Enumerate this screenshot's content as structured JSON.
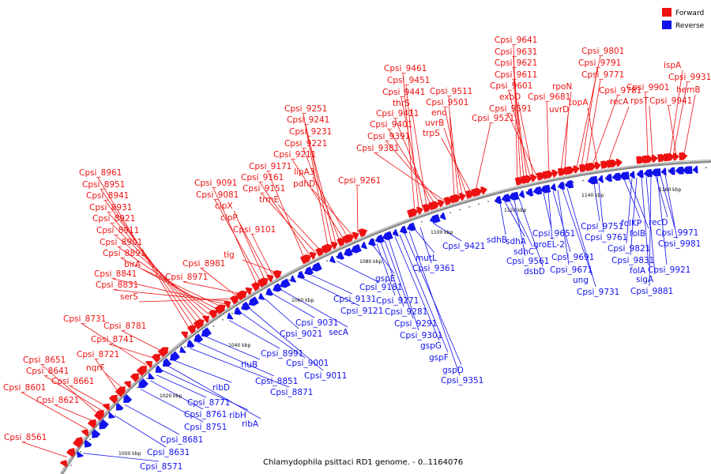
{
  "title": "Chlamydophila psittaci RD1 genome. - 0..1164076",
  "colors": {
    "forward": "#ee1111",
    "reverse": "#1111ee",
    "backbone": "#7a7a7a"
  },
  "legend": {
    "forward": "Forward",
    "reverse": "Reverse"
  },
  "ticks": [
    "1000 kbp",
    "1020 kbp",
    "1040 kbp",
    "1060 kbp",
    "1080 kbp",
    "1100 kbp",
    "1120 kbp",
    "1140 kbp",
    "1160 kbp"
  ],
  "forward_labels": [
    "Cpsi_8561",
    "Cpsi_8601",
    "Cpsi_8621",
    "Cpsi_8651",
    "Cpsi_8641",
    "Cpsi_8661",
    "Cpsi_8721",
    "nqrF",
    "Cpsi_8731",
    "Cpsi_8741",
    "Cpsi_8781",
    "Cpsi_8961",
    "Cpsi_8951",
    "Cpsi_8941",
    "Cpsi_8931",
    "Cpsi_8921",
    "Cpsi_8911",
    "Cpsi_8901",
    "Cpsi_8891",
    "birA",
    "Cpsi_8841",
    "Cpsi_8831",
    "serS",
    "Cpsi_8981",
    "Cpsi_8971",
    "Cpsi_9091",
    "Cpsi_9081",
    "clpX",
    "clpP",
    "Cpsi_9101",
    "tig",
    "Cpsi_9171",
    "Cpsi_9161",
    "Cpsi_9151",
    "trmE",
    "Cpsi_9251",
    "Cpsi_9241",
    "Cpsi_9231",
    "Cpsi_9221",
    "Cpsi_9211",
    "lipA3",
    "pdhD",
    "Cpsi_9261",
    "Cpsi_9461",
    "Cpsi_9451",
    "Cpsi_9441",
    "thrS",
    "Cpsi_9411",
    "Cpsi_9401",
    "Cpsi_9391",
    "Cpsi_9381",
    "Cpsi_9511",
    "eno",
    "Cpsi_9501",
    "uvrB",
    "trpS",
    "Cpsi_9521",
    "Cpsi_9641",
    "Cpsi_9631",
    "Cpsi_9621",
    "Cpsi_9611",
    "Cpsi_9601",
    "exbD",
    "Cpsi_9591",
    "Cpsi_9681",
    "rpoN",
    "uvrD",
    "Cpsi_9801",
    "Cpsi_9791",
    "Cpsi_9771",
    "Cpsi_9781",
    "topA",
    "recA",
    "ispA",
    "Cpsi_9931",
    "Cpsi_9901",
    "rpsT",
    "Cpsi_9941",
    "hemB"
  ],
  "reverse_labels": [
    "Cpsi_8571",
    "Cpsi_8631",
    "Cpsi_8681",
    "Cpsi_8751",
    "Cpsi_8761",
    "Cpsi_8771",
    "ribH",
    "ribA",
    "ribD",
    "Cpsi_8871",
    "Cpsi_8851",
    "rluB",
    "Cpsi_8991",
    "Cpsi_9001",
    "Cpsi_9011",
    "Cpsi_9021",
    "Cpsi_9031",
    "secA",
    "Cpsi_9121",
    "Cpsi_9131",
    "Cpsi_9181",
    "gspE",
    "Cpsi_9271",
    "Cpsi_9281",
    "Cpsi_9291",
    "Cpsi_9301",
    "gspG",
    "gspF",
    "gspD",
    "Cpsi_9351",
    "mutL",
    "Cpsi_9361",
    "Cpsi_9421",
    "sdhB",
    "sdhA",
    "sdhC",
    "Cpsi_9561",
    "dsbD",
    "Cpsi_9651",
    "groEL-2",
    "Cpsi_9691",
    "Cpsi_9671",
    "ung",
    "Cpsi_9731",
    "Cpsi_9751",
    "Cpsi_9761",
    "folKP",
    "folB",
    "Cpsi_9821",
    "Cpsi_9831",
    "folA",
    "sigA",
    "Cpsi_9881",
    "recD",
    "Cpsi_9971",
    "Cpsi_9981",
    "Cpsi_9921"
  ]
}
